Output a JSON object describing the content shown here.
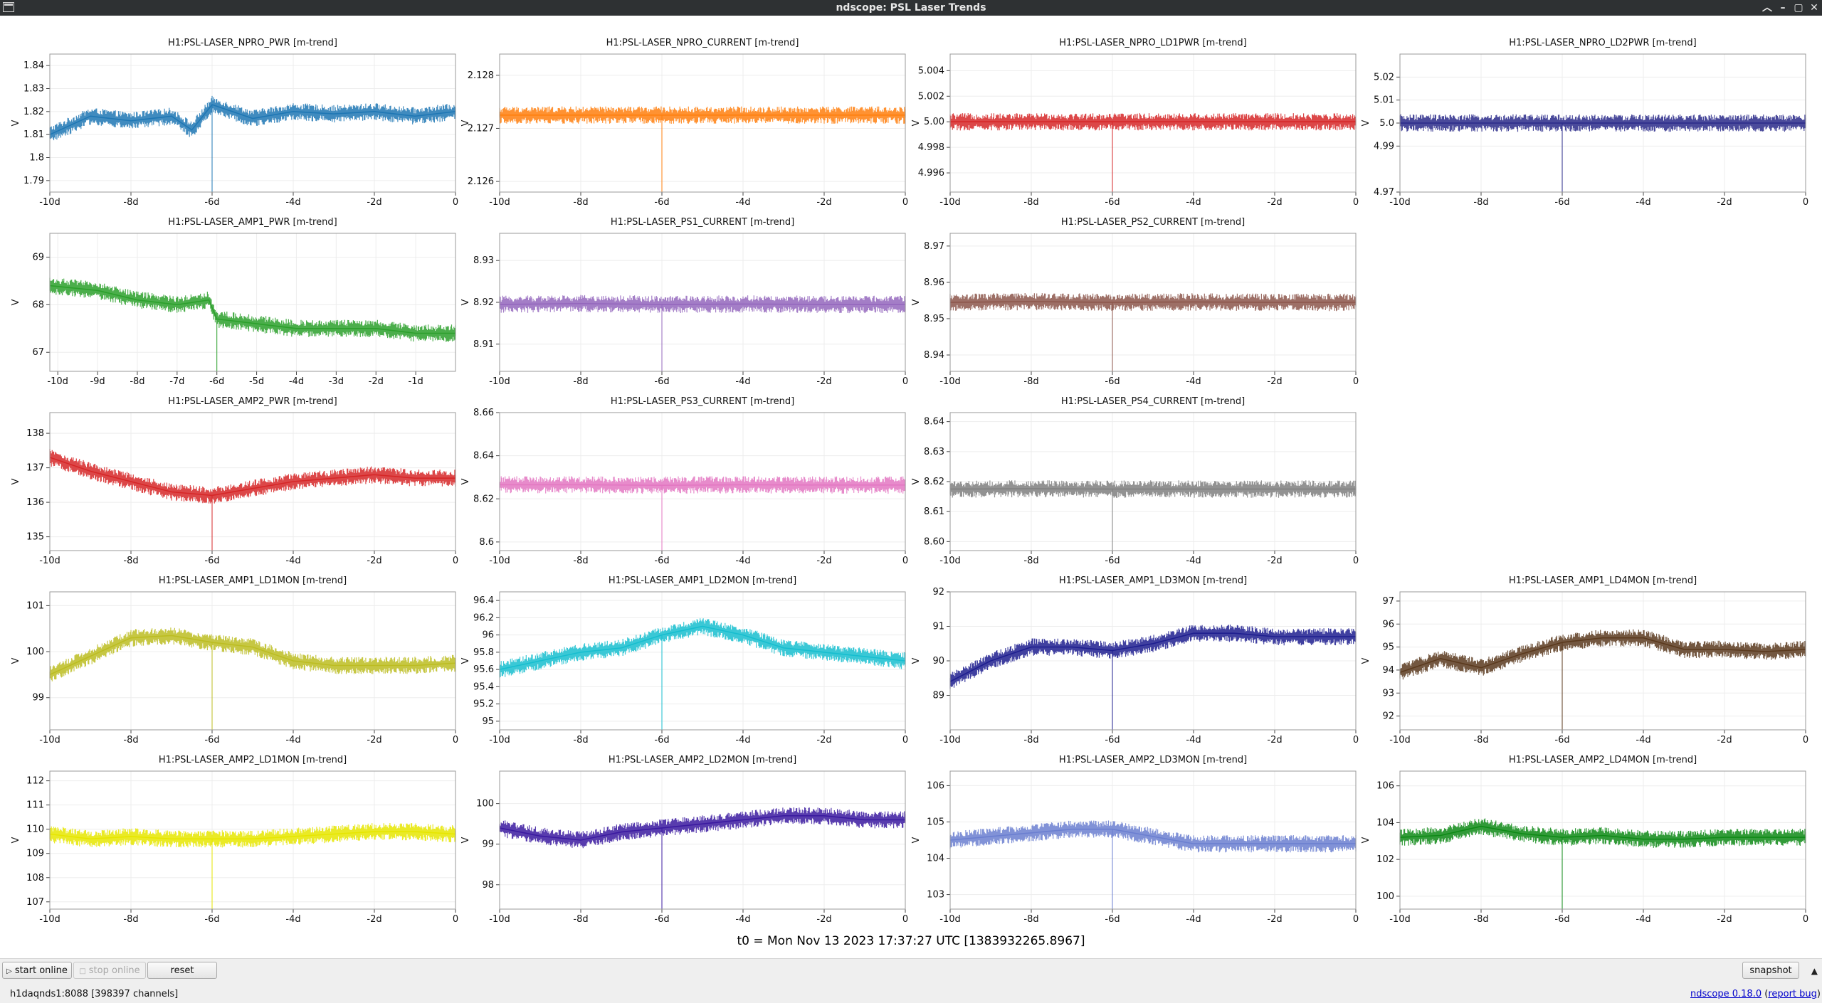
{
  "window": {
    "title": "ndscope: PSL Laser Trends",
    "controls": [
      "︿",
      "–",
      "▢",
      "✕"
    ]
  },
  "t0_label": "t0 = Mon Nov 13 2023 17:37:27 UTC [1383932265.8967]",
  "toolbar": {
    "start_online": "start online",
    "stop_online": "stop online",
    "reset": "reset",
    "snapshot": "snapshot"
  },
  "status": {
    "server": "h1daqnds1:8088  [398397 channels]",
    "version": "ndscope 0.18.0",
    "report_bug": "report bug"
  },
  "chart_data": [
    {
      "type": "line",
      "title": "H1:PSL-LASER_NPRO_PWR [m-trend]",
      "ylabel": "V",
      "color": "#1f77b4",
      "xticks": [
        "-10d",
        "-8d",
        "-6d",
        "-4d",
        "-2d",
        "0"
      ],
      "xlim": [
        -10,
        0
      ],
      "yticks": [
        "1.79",
        "1.8",
        "1.81",
        "1.82",
        "1.83",
        "1.84"
      ],
      "ylim": [
        1.785,
        1.845
      ],
      "series": [
        {
          "x": [
            -10,
            -9,
            -8,
            -7,
            -6.5,
            -6,
            -5,
            -4,
            -3,
            -2,
            -1,
            0
          ],
          "y": [
            1.81,
            1.818,
            1.816,
            1.818,
            1.812,
            1.823,
            1.817,
            1.82,
            1.819,
            1.82,
            1.818,
            1.82
          ]
        }
      ]
    },
    {
      "type": "line",
      "title": "H1:PSL-LASER_NPRO_CURRENT [m-trend]",
      "ylabel": "V",
      "color": "#ff7f0e",
      "xticks": [
        "-10d",
        "-8d",
        "-6d",
        "-4d",
        "-2d",
        "0"
      ],
      "xlim": [
        -10,
        0
      ],
      "yticks": [
        "2.126",
        "2.127",
        "2.128"
      ],
      "ylim": [
        2.1258,
        2.1284
      ],
      "series": [
        {
          "x": [
            -10,
            -8,
            -6,
            -4,
            -2,
            0
          ],
          "y": [
            2.12725,
            2.12725,
            2.12725,
            2.12725,
            2.12725,
            2.12725
          ]
        }
      ]
    },
    {
      "type": "line",
      "title": "H1:PSL-LASER_NPRO_LD1PWR [m-trend]",
      "ylabel": "V",
      "color": "#d62728",
      "xticks": [
        "-10d",
        "-8d",
        "-6d",
        "-4d",
        "-2d",
        "0"
      ],
      "xlim": [
        -10,
        0
      ],
      "yticks": [
        "4.996",
        "4.998",
        "5.00",
        "5.002",
        "5.004"
      ],
      "ylim": [
        4.9945,
        5.0053
      ],
      "series": [
        {
          "x": [
            -10,
            -8,
            -6,
            -4,
            -2,
            0
          ],
          "y": [
            5.0,
            5.0,
            5.0,
            5.0,
            5.0,
            5.0
          ]
        }
      ]
    },
    {
      "type": "line",
      "title": "H1:PSL-LASER_NPRO_LD2PWR [m-trend]",
      "ylabel": "V",
      "color": "#2a2a8a",
      "xticks": [
        "-10d",
        "-8d",
        "-6d",
        "-4d",
        "-2d",
        "0"
      ],
      "xlim": [
        -10,
        0
      ],
      "yticks": [
        "4.97",
        "4.99",
        "5.0",
        "5.01",
        "5.02"
      ],
      "ylim": [
        4.97,
        5.03
      ],
      "series": [
        {
          "x": [
            -10,
            -8,
            -6,
            -4,
            -2,
            0
          ],
          "y": [
            5.0,
            5.0,
            5.0,
            5.0,
            5.0,
            5.0
          ]
        }
      ]
    },
    {
      "type": "line",
      "title": "H1:PSL-LASER_AMP1_PWR [m-trend]",
      "ylabel": "V",
      "color": "#2ca02c",
      "xticks": [
        "-10d",
        "-9d",
        "-8d",
        "-7d",
        "-6d",
        "-5d",
        "-4d",
        "-3d",
        "-2d",
        "-1d"
      ],
      "xlim": [
        -10.2,
        0
      ],
      "yticks": [
        "67",
        "68",
        "69"
      ],
      "ylim": [
        66.6,
        69.5
      ],
      "series": [
        {
          "x": [
            -10.2,
            -9,
            -8,
            -7,
            -6.2,
            -6,
            -5,
            -4,
            -3,
            -2,
            -1,
            0
          ],
          "y": [
            68.4,
            68.3,
            68.1,
            68.0,
            68.1,
            67.7,
            67.6,
            67.5,
            67.5,
            67.5,
            67.4,
            67.4
          ]
        }
      ]
    },
    {
      "type": "line",
      "title": "H1:PSL-LASER_PS1_CURRENT [m-trend]",
      "ylabel": "V",
      "color": "#9467bd",
      "xticks": [
        "-10d",
        "-8d",
        "-6d",
        "-4d",
        "-2d",
        "0"
      ],
      "xlim": [
        -10,
        0
      ],
      "yticks": [
        "8.91",
        "8.92",
        "8.93"
      ],
      "ylim": [
        8.9035,
        8.9365
      ],
      "series": [
        {
          "x": [
            -10,
            -8,
            -6,
            -4,
            -2,
            0
          ],
          "y": [
            8.9195,
            8.9197,
            8.9195,
            8.9196,
            8.9195,
            8.9195
          ]
        }
      ]
    },
    {
      "type": "line",
      "title": "H1:PSL-LASER_PS2_CURRENT [m-trend]",
      "ylabel": "V",
      "color": "#8c564b",
      "xticks": [
        "-10d",
        "-8d",
        "-6d",
        "-4d",
        "-2d",
        "0"
      ],
      "xlim": [
        -10,
        0
      ],
      "yticks": [
        "8.94",
        "8.95",
        "8.96",
        "8.97"
      ],
      "ylim": [
        8.9355,
        8.9735
      ],
      "series": [
        {
          "x": [
            -10,
            -8,
            -6,
            -4,
            -2,
            0
          ],
          "y": [
            8.9545,
            8.9547,
            8.9545,
            8.9546,
            8.9545,
            8.9545
          ]
        }
      ]
    },
    {
      "type": "line",
      "title": "H1:PSL-LASER_AMP2_PWR [m-trend]",
      "ylabel": "V",
      "color": "#d62728",
      "xticks": [
        "-10d",
        "-8d",
        "-6d",
        "-4d",
        "-2d",
        "0"
      ],
      "xlim": [
        -10,
        0
      ],
      "yticks": [
        "135",
        "136",
        "137",
        "138"
      ],
      "ylim": [
        134.6,
        138.6
      ],
      "series": [
        {
          "x": [
            -10,
            -9,
            -8,
            -7,
            -6,
            -5,
            -4,
            -3,
            -2,
            -1,
            0
          ],
          "y": [
            137.3,
            136.9,
            136.6,
            136.3,
            136.2,
            136.4,
            136.6,
            136.7,
            136.8,
            136.7,
            136.7
          ]
        }
      ]
    },
    {
      "type": "line",
      "title": "H1:PSL-LASER_PS3_CURRENT [m-trend]",
      "ylabel": "V",
      "color": "#e377c2",
      "xticks": [
        "-10d",
        "-8d",
        "-6d",
        "-4d",
        "-2d",
        "0"
      ],
      "xlim": [
        -10,
        0
      ],
      "yticks": [
        "8.6",
        "8.62",
        "8.64",
        "8.66"
      ],
      "ylim": [
        8.596,
        8.66
      ],
      "series": [
        {
          "x": [
            -10,
            -8,
            -6,
            -4,
            -2,
            0
          ],
          "y": [
            8.6265,
            8.6265,
            8.6263,
            8.6265,
            8.6264,
            8.6264
          ]
        }
      ]
    },
    {
      "type": "line",
      "title": "H1:PSL-LASER_PS4_CURRENT [m-trend]",
      "ylabel": "V",
      "color": "#7f7f7f",
      "xticks": [
        "-10d",
        "-8d",
        "-6d",
        "-4d",
        "-2d",
        "0"
      ],
      "xlim": [
        -10,
        0
      ],
      "yticks": [
        "8.60",
        "8.61",
        "8.62",
        "8.63",
        "8.64"
      ],
      "ylim": [
        8.597,
        8.643
      ],
      "series": [
        {
          "x": [
            -10,
            -8,
            -6,
            -4,
            -2,
            0
          ],
          "y": [
            8.6175,
            8.6176,
            8.6175,
            8.6175,
            8.6175,
            8.6175
          ]
        }
      ]
    },
    {
      "type": "line",
      "title": "H1:PSL-LASER_AMP1_LD1MON [m-trend]",
      "ylabel": "V",
      "color": "#bcbd22",
      "xticks": [
        "-10d",
        "-8d",
        "-6d",
        "-4d",
        "-2d",
        "0"
      ],
      "xlim": [
        -10,
        0
      ],
      "yticks": [
        "99",
        "100",
        "101"
      ],
      "ylim": [
        98.3,
        101.3
      ],
      "series": [
        {
          "x": [
            -10,
            -9,
            -8,
            -7,
            -6,
            -5,
            -4,
            -3,
            -2,
            -1,
            0
          ],
          "y": [
            99.5,
            99.9,
            100.3,
            100.35,
            100.2,
            100.1,
            99.8,
            99.7,
            99.7,
            99.7,
            99.75
          ]
        }
      ]
    },
    {
      "type": "line",
      "title": "H1:PSL-LASER_AMP1_LD2MON [m-trend]",
      "ylabel": "V",
      "color": "#17becf",
      "xticks": [
        "-10d",
        "-8d",
        "-6d",
        "-4d",
        "-2d",
        "0"
      ],
      "xlim": [
        -10,
        0
      ],
      "yticks": [
        "95",
        "95.2",
        "95.4",
        "95.6",
        "95.8",
        "96",
        "96.2",
        "96.4"
      ],
      "ylim": [
        94.9,
        96.5
      ],
      "series": [
        {
          "x": [
            -10,
            -9,
            -8,
            -7,
            -6,
            -5,
            -4,
            -3,
            -2,
            -1,
            0
          ],
          "y": [
            95.6,
            95.7,
            95.8,
            95.85,
            96.0,
            96.1,
            96.0,
            95.85,
            95.8,
            95.75,
            95.7
          ]
        }
      ]
    },
    {
      "type": "line",
      "title": "H1:PSL-LASER_AMP1_LD3MON [m-trend]",
      "ylabel": "V",
      "color": "#1f1f8f",
      "xticks": [
        "-10d",
        "-8d",
        "-6d",
        "-4d",
        "-2d",
        "0"
      ],
      "xlim": [
        -10,
        0
      ],
      "yticks": [
        "89",
        "90",
        "91",
        "92"
      ],
      "ylim": [
        88.0,
        92.0
      ],
      "series": [
        {
          "x": [
            -10,
            -9,
            -8,
            -7,
            -6,
            -5,
            -4,
            -3,
            -2,
            -1,
            0
          ],
          "y": [
            89.4,
            90.0,
            90.4,
            90.4,
            90.3,
            90.5,
            90.8,
            90.8,
            90.7,
            90.7,
            90.7
          ]
        }
      ]
    },
    {
      "type": "line",
      "title": "H1:PSL-LASER_AMP1_LD4MON [m-trend]",
      "ylabel": "V",
      "color": "#5b3a1e",
      "xticks": [
        "-10d",
        "-8d",
        "-6d",
        "-4d",
        "-2d",
        "0"
      ],
      "xlim": [
        -10,
        0
      ],
      "yticks": [
        "92",
        "93",
        "94",
        "95",
        "96",
        "97"
      ],
      "ylim": [
        91.4,
        97.4
      ],
      "series": [
        {
          "x": [
            -10,
            -9,
            -8,
            -7,
            -6,
            -5,
            -4,
            -3,
            -2,
            -1,
            0
          ],
          "y": [
            93.9,
            94.5,
            94.1,
            94.7,
            95.2,
            95.4,
            95.4,
            94.9,
            94.9,
            94.8,
            94.9
          ]
        }
      ]
    },
    {
      "type": "line",
      "title": "H1:PSL-LASER_AMP2_LD1MON [m-trend]",
      "ylabel": "V",
      "color": "#e6e600",
      "xticks": [
        "-10d",
        "-8d",
        "-6d",
        "-4d",
        "-2d",
        "0"
      ],
      "xlim": [
        -10,
        0
      ],
      "yticks": [
        "107",
        "108",
        "109",
        "110",
        "111",
        "112"
      ],
      "ylim": [
        106.7,
        112.4
      ],
      "series": [
        {
          "x": [
            -10,
            -9,
            -8,
            -7,
            -6,
            -5,
            -4,
            -3,
            -2,
            -1,
            0
          ],
          "y": [
            109.8,
            109.6,
            109.7,
            109.6,
            109.6,
            109.6,
            109.7,
            109.8,
            109.9,
            109.9,
            109.8
          ]
        }
      ]
    },
    {
      "type": "line",
      "title": "H1:PSL-LASER_AMP2_LD2MON [m-trend]",
      "ylabel": "V",
      "color": "#3b1aa0",
      "xticks": [
        "-10d",
        "-8d",
        "-6d",
        "-4d",
        "-2d",
        "0"
      ],
      "xlim": [
        -10,
        0
      ],
      "yticks": [
        "98",
        "99",
        "100"
      ],
      "ylim": [
        97.4,
        100.8
      ],
      "series": [
        {
          "x": [
            -10,
            -9,
            -8,
            -7,
            -6,
            -5,
            -4,
            -3,
            -2,
            -1,
            0
          ],
          "y": [
            99.4,
            99.2,
            99.1,
            99.3,
            99.4,
            99.5,
            99.6,
            99.7,
            99.7,
            99.6,
            99.6
          ]
        }
      ]
    },
    {
      "type": "line",
      "title": "H1:PSL-LASER_AMP2_LD3MON [m-trend]",
      "ylabel": "V",
      "color": "#6b7fd0",
      "xticks": [
        "-10d",
        "-8d",
        "-6d",
        "-4d",
        "-2d",
        "0"
      ],
      "xlim": [
        -10,
        0
      ],
      "yticks": [
        "103",
        "104",
        "105",
        "106"
      ],
      "ylim": [
        102.6,
        106.4
      ],
      "series": [
        {
          "x": [
            -10,
            -9,
            -8,
            -7,
            -6,
            -5,
            -4,
            -3,
            -2,
            -1,
            0
          ],
          "y": [
            104.5,
            104.6,
            104.7,
            104.8,
            104.8,
            104.6,
            104.4,
            104.4,
            104.4,
            104.4,
            104.4
          ]
        }
      ]
    },
    {
      "type": "line",
      "title": "H1:PSL-LASER_AMP2_LD4MON [m-trend]",
      "ylabel": "V",
      "color": "#0e8a16",
      "xticks": [
        "-10d",
        "-8d",
        "-6d",
        "-4d",
        "-2d",
        "0"
      ],
      "xlim": [
        -10,
        0
      ],
      "yticks": [
        "100",
        "102",
        "104",
        "106"
      ],
      "ylim": [
        99.3,
        106.8
      ],
      "series": [
        {
          "x": [
            -10,
            -9,
            -8,
            -7,
            -6,
            -5,
            -4,
            -3,
            -2,
            -1,
            0
          ],
          "y": [
            103.2,
            103.3,
            103.8,
            103.4,
            103.2,
            103.3,
            103.1,
            103.1,
            103.2,
            103.2,
            103.2
          ]
        }
      ]
    }
  ]
}
